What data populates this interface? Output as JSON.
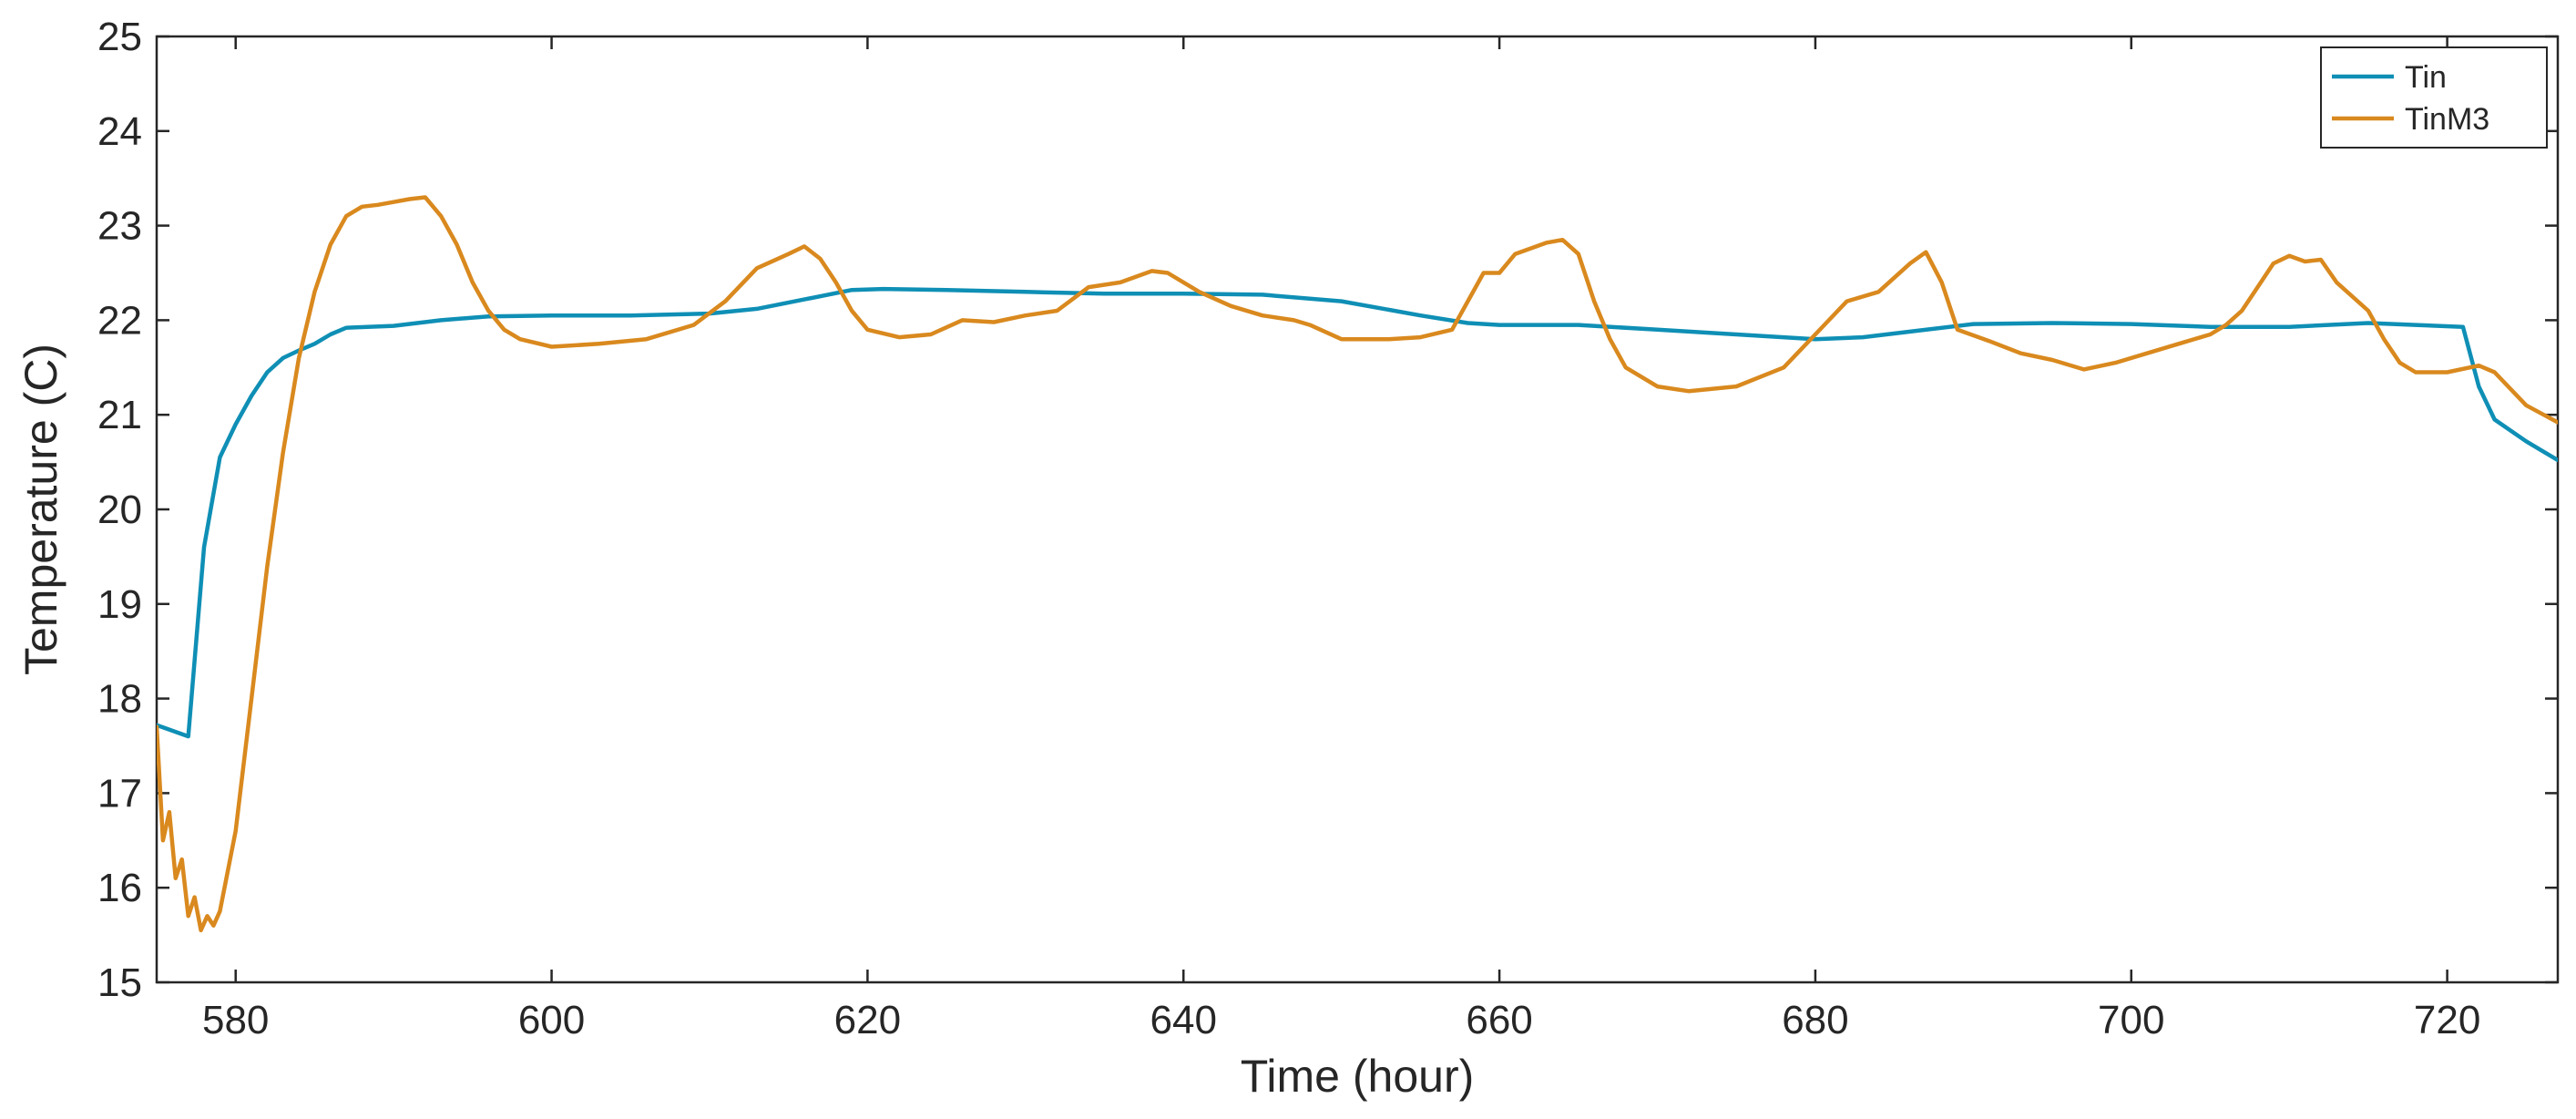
{
  "chart_data": {
    "type": "line",
    "xlabel": "Time (hour)",
    "ylabel": "Temperature (C)",
    "xlim": [
      575,
      727
    ],
    "ylim": [
      15,
      25
    ],
    "xticks": [
      580,
      600,
      620,
      640,
      660,
      680,
      700,
      720
    ],
    "yticks": [
      15,
      16,
      17,
      18,
      19,
      20,
      21,
      22,
      23,
      24,
      25
    ],
    "grid": false,
    "legend_position": "top-right",
    "series": [
      {
        "name": "Tin",
        "color": "#0f8fb5",
        "points": [
          [
            575,
            17.72
          ],
          [
            577,
            17.6
          ],
          [
            578,
            19.6
          ],
          [
            579,
            20.55
          ],
          [
            580,
            20.9
          ],
          [
            581,
            21.2
          ],
          [
            582,
            21.45
          ],
          [
            583,
            21.6
          ],
          [
            584,
            21.68
          ],
          [
            585,
            21.75
          ],
          [
            586,
            21.85
          ],
          [
            587,
            21.92
          ],
          [
            590,
            21.94
          ],
          [
            593,
            22.0
          ],
          [
            596,
            22.04
          ],
          [
            600,
            22.05
          ],
          [
            605,
            22.05
          ],
          [
            610,
            22.07
          ],
          [
            613,
            22.12
          ],
          [
            616,
            22.22
          ],
          [
            619,
            22.32
          ],
          [
            621,
            22.33
          ],
          [
            625,
            22.32
          ],
          [
            630,
            22.3
          ],
          [
            635,
            22.28
          ],
          [
            640,
            22.28
          ],
          [
            645,
            22.27
          ],
          [
            650,
            22.2
          ],
          [
            655,
            22.05
          ],
          [
            658,
            21.97
          ],
          [
            660,
            21.95
          ],
          [
            665,
            21.95
          ],
          [
            670,
            21.9
          ],
          [
            675,
            21.85
          ],
          [
            680,
            21.8
          ],
          [
            683,
            21.82
          ],
          [
            686,
            21.88
          ],
          [
            690,
            21.96
          ],
          [
            695,
            21.97
          ],
          [
            700,
            21.96
          ],
          [
            705,
            21.93
          ],
          [
            710,
            21.93
          ],
          [
            715,
            21.97
          ],
          [
            718,
            21.95
          ],
          [
            721,
            21.93
          ],
          [
            722,
            21.3
          ],
          [
            723,
            20.95
          ],
          [
            725,
            20.72
          ],
          [
            727,
            20.52
          ]
        ]
      },
      {
        "name": "TinM3",
        "color": "#d9891e",
        "points": [
          [
            575,
            17.7
          ],
          [
            575.4,
            16.5
          ],
          [
            575.8,
            16.8
          ],
          [
            576.2,
            16.1
          ],
          [
            576.6,
            16.3
          ],
          [
            577,
            15.7
          ],
          [
            577.4,
            15.9
          ],
          [
            577.8,
            15.55
          ],
          [
            578.2,
            15.7
          ],
          [
            578.6,
            15.6
          ],
          [
            579,
            15.75
          ],
          [
            580,
            16.6
          ],
          [
            581,
            18.0
          ],
          [
            582,
            19.4
          ],
          [
            583,
            20.6
          ],
          [
            584,
            21.6
          ],
          [
            585,
            22.3
          ],
          [
            586,
            22.8
          ],
          [
            587,
            23.1
          ],
          [
            588,
            23.2
          ],
          [
            589,
            23.22
          ],
          [
            590,
            23.25
          ],
          [
            591,
            23.28
          ],
          [
            592,
            23.3
          ],
          [
            593,
            23.1
          ],
          [
            594,
            22.8
          ],
          [
            595,
            22.4
          ],
          [
            596,
            22.1
          ],
          [
            597,
            21.9
          ],
          [
            598,
            21.8
          ],
          [
            600,
            21.72
          ],
          [
            603,
            21.75
          ],
          [
            606,
            21.8
          ],
          [
            609,
            21.95
          ],
          [
            611,
            22.2
          ],
          [
            613,
            22.55
          ],
          [
            615,
            22.7
          ],
          [
            616,
            22.78
          ],
          [
            617,
            22.65
          ],
          [
            618,
            22.4
          ],
          [
            619,
            22.1
          ],
          [
            620,
            21.9
          ],
          [
            622,
            21.82
          ],
          [
            624,
            21.85
          ],
          [
            626,
            22.0
          ],
          [
            628,
            21.98
          ],
          [
            630,
            22.05
          ],
          [
            632,
            22.1
          ],
          [
            634,
            22.35
          ],
          [
            636,
            22.4
          ],
          [
            638,
            22.52
          ],
          [
            639,
            22.5
          ],
          [
            641,
            22.3
          ],
          [
            643,
            22.15
          ],
          [
            645,
            22.05
          ],
          [
            647,
            22.0
          ],
          [
            648,
            21.95
          ],
          [
            650,
            21.8
          ],
          [
            653,
            21.8
          ],
          [
            655,
            21.82
          ],
          [
            657,
            21.9
          ],
          [
            659,
            22.5
          ],
          [
            660,
            22.5
          ],
          [
            661,
            22.7
          ],
          [
            663,
            22.82
          ],
          [
            664,
            22.85
          ],
          [
            665,
            22.7
          ],
          [
            666,
            22.2
          ],
          [
            667,
            21.8
          ],
          [
            668,
            21.5
          ],
          [
            670,
            21.3
          ],
          [
            672,
            21.25
          ],
          [
            675,
            21.3
          ],
          [
            678,
            21.5
          ],
          [
            680,
            21.85
          ],
          [
            682,
            22.2
          ],
          [
            684,
            22.3
          ],
          [
            686,
            22.6
          ],
          [
            687,
            22.72
          ],
          [
            688,
            22.4
          ],
          [
            689,
            21.9
          ],
          [
            691,
            21.78
          ],
          [
            693,
            21.65
          ],
          [
            695,
            21.58
          ],
          [
            697,
            21.48
          ],
          [
            699,
            21.55
          ],
          [
            701,
            21.65
          ],
          [
            703,
            21.75
          ],
          [
            705,
            21.85
          ],
          [
            706,
            21.95
          ],
          [
            707,
            22.1
          ],
          [
            708,
            22.35
          ],
          [
            709,
            22.6
          ],
          [
            710,
            22.68
          ],
          [
            711,
            22.62
          ],
          [
            712,
            22.64
          ],
          [
            713,
            22.4
          ],
          [
            714,
            22.25
          ],
          [
            715,
            22.1
          ],
          [
            716,
            21.8
          ],
          [
            717,
            21.55
          ],
          [
            718,
            21.45
          ],
          [
            720,
            21.45
          ],
          [
            722,
            21.52
          ],
          [
            723,
            21.45
          ],
          [
            725,
            21.1
          ],
          [
            727,
            20.92
          ]
        ]
      }
    ]
  }
}
